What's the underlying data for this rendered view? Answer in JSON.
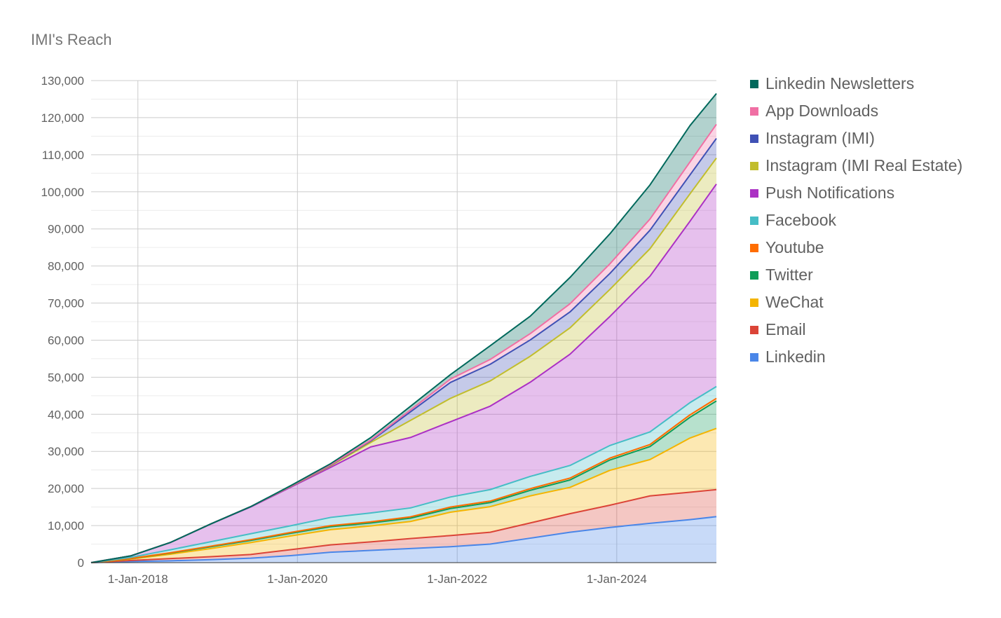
{
  "chart_data": {
    "type": "area",
    "stacked": true,
    "title": "IMI's Reach",
    "xlabel": "",
    "ylabel": "",
    "ylim": [
      0,
      130000
    ],
    "yticks": [
      0,
      10000,
      20000,
      30000,
      40000,
      50000,
      60000,
      70000,
      80000,
      90000,
      100000,
      110000,
      120000,
      130000
    ],
    "ytick_labels": [
      "0",
      "10,000",
      "20,000",
      "30,000",
      "40,000",
      "50,000",
      "60,000",
      "70,000",
      "80,000",
      "90,000",
      "100,000",
      "110,000",
      "120,000",
      "130,000"
    ],
    "xlim": [
      "2017-06-01",
      "2025-04-01"
    ],
    "xticks": [
      "2018-01-01",
      "2020-01-01",
      "2022-01-01",
      "2024-01-01"
    ],
    "xtick_labels": [
      "1-Jan-2018",
      "1-Jan-2020",
      "1-Jan-2022",
      "1-Jan-2024"
    ],
    "grid": true,
    "legend_position": "right",
    "x": [
      "2017-06-01",
      "2017-12-01",
      "2018-06-01",
      "2018-12-01",
      "2019-06-01",
      "2019-12-01",
      "2020-06-01",
      "2020-12-01",
      "2021-06-01",
      "2021-12-01",
      "2022-06-01",
      "2022-12-01",
      "2023-06-01",
      "2023-12-01",
      "2024-06-01",
      "2024-12-01",
      "2025-04-01"
    ],
    "series": [
      {
        "name": "Linkedin",
        "color": "#4a86e8",
        "values": [
          0,
          300,
          500,
          800,
          1200,
          1900,
          2800,
          3300,
          3800,
          4300,
          5000,
          6600,
          8200,
          9500,
          10600,
          11600,
          12400
        ]
      },
      {
        "name": "Email",
        "color": "#db4437",
        "values": [
          0,
          300,
          600,
          800,
          1000,
          1600,
          2000,
          2300,
          2700,
          3000,
          3200,
          4100,
          5000,
          6000,
          7400,
          7400,
          7300
        ]
      },
      {
        "name": "WeChat",
        "color": "#f4b400",
        "values": [
          0,
          400,
          1200,
          2200,
          3200,
          3700,
          4100,
          4300,
          4600,
          6300,
          6900,
          7300,
          7100,
          9400,
          9800,
          14600,
          16500
        ]
      },
      {
        "name": "Twitter",
        "color": "#0f9d58",
        "values": [
          0,
          100,
          300,
          500,
          600,
          700,
          800,
          800,
          900,
          1000,
          1100,
          1500,
          2000,
          2800,
          3500,
          5600,
          7400
        ]
      },
      {
        "name": "Youtube",
        "color": "#ff6d00",
        "values": [
          0,
          50,
          100,
          150,
          200,
          250,
          300,
          300,
          350,
          400,
          400,
          450,
          500,
          500,
          550,
          650,
          700
        ]
      },
      {
        "name": "Facebook",
        "color": "#46bdc6",
        "values": [
          0,
          300,
          800,
          1200,
          1600,
          1800,
          2200,
          2400,
          2400,
          2700,
          3100,
          3300,
          3400,
          3400,
          3400,
          3300,
          3200
        ]
      },
      {
        "name": "Push Notifications",
        "color": "#ab30c4",
        "values": [
          0,
          400,
          2000,
          4800,
          7200,
          10400,
          13500,
          17800,
          19000,
          20300,
          22500,
          25400,
          30000,
          34800,
          42000,
          48900,
          54600
        ]
      },
      {
        "name": "Instagram (IMI Real Estate)",
        "color": "#c1bd2d",
        "values": [
          0,
          0,
          0,
          0,
          100,
          200,
          400,
          1200,
          4600,
          6300,
          6800,
          7000,
          7100,
          7300,
          7400,
          7400,
          7000
        ]
      },
      {
        "name": "Instagram (IMI)",
        "color": "#3f51b5",
        "values": [
          0,
          0,
          0,
          0,
          0,
          100,
          200,
          400,
          2300,
          4300,
          4500,
          4400,
          4300,
          4300,
          5000,
          5100,
          5300
        ]
      },
      {
        "name": "App Downloads",
        "color": "#f06fa4",
        "values": [
          0,
          0,
          0,
          0,
          0,
          0,
          100,
          200,
          500,
          900,
          1300,
          1700,
          2200,
          2600,
          3000,
          3500,
          3800
        ]
      },
      {
        "name": "Linkedin Newsletters",
        "color": "#00695c",
        "values": [
          0,
          0,
          0,
          0,
          0,
          100,
          300,
          700,
          1000,
          1200,
          3700,
          4700,
          7100,
          8100,
          9200,
          9800,
          8300
        ]
      }
    ]
  }
}
